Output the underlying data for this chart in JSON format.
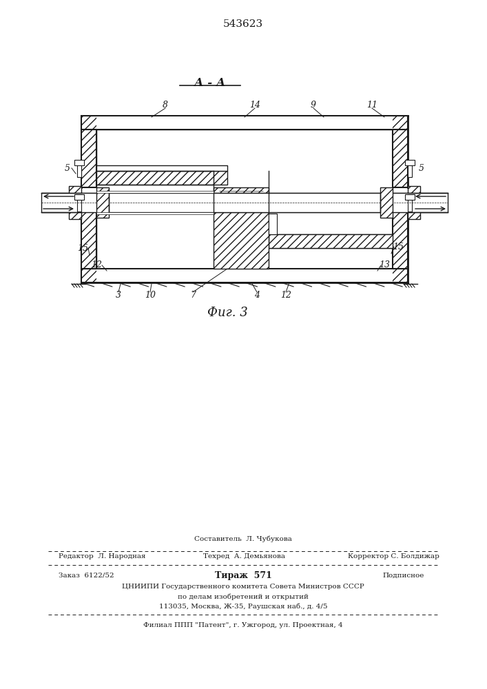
{
  "patent_number": "543623",
  "section_label": "А - А",
  "figure_label": "Фиг. 3",
  "bg_color": "#ffffff",
  "lc": "#1a1a1a",
  "bottom_texts": {
    "sostavitel": "Составитель  Л. Чубукова",
    "redaktor": "Редактор",
    "redaktor_n": "Л. Народная",
    "tekhred": "Техред",
    "tekhred_n": "А. Демьянова",
    "korrektor": "Корректор С. Болдижар",
    "zakaz": "Заказ  6122/52",
    "tirazh": "Тираж  571",
    "podpisnoe": "Подписное",
    "org1": "ЦНИИПИ Государственного комитета Совета Министров СССР",
    "org2": "по делам изобретений и открытий",
    "org3": "113035, Москва, Ж-35, Раушская наб., д. 4/5",
    "filial": "Филиал ППП \"Патент\", г. Ужгород, ул. Проектная, 4"
  }
}
